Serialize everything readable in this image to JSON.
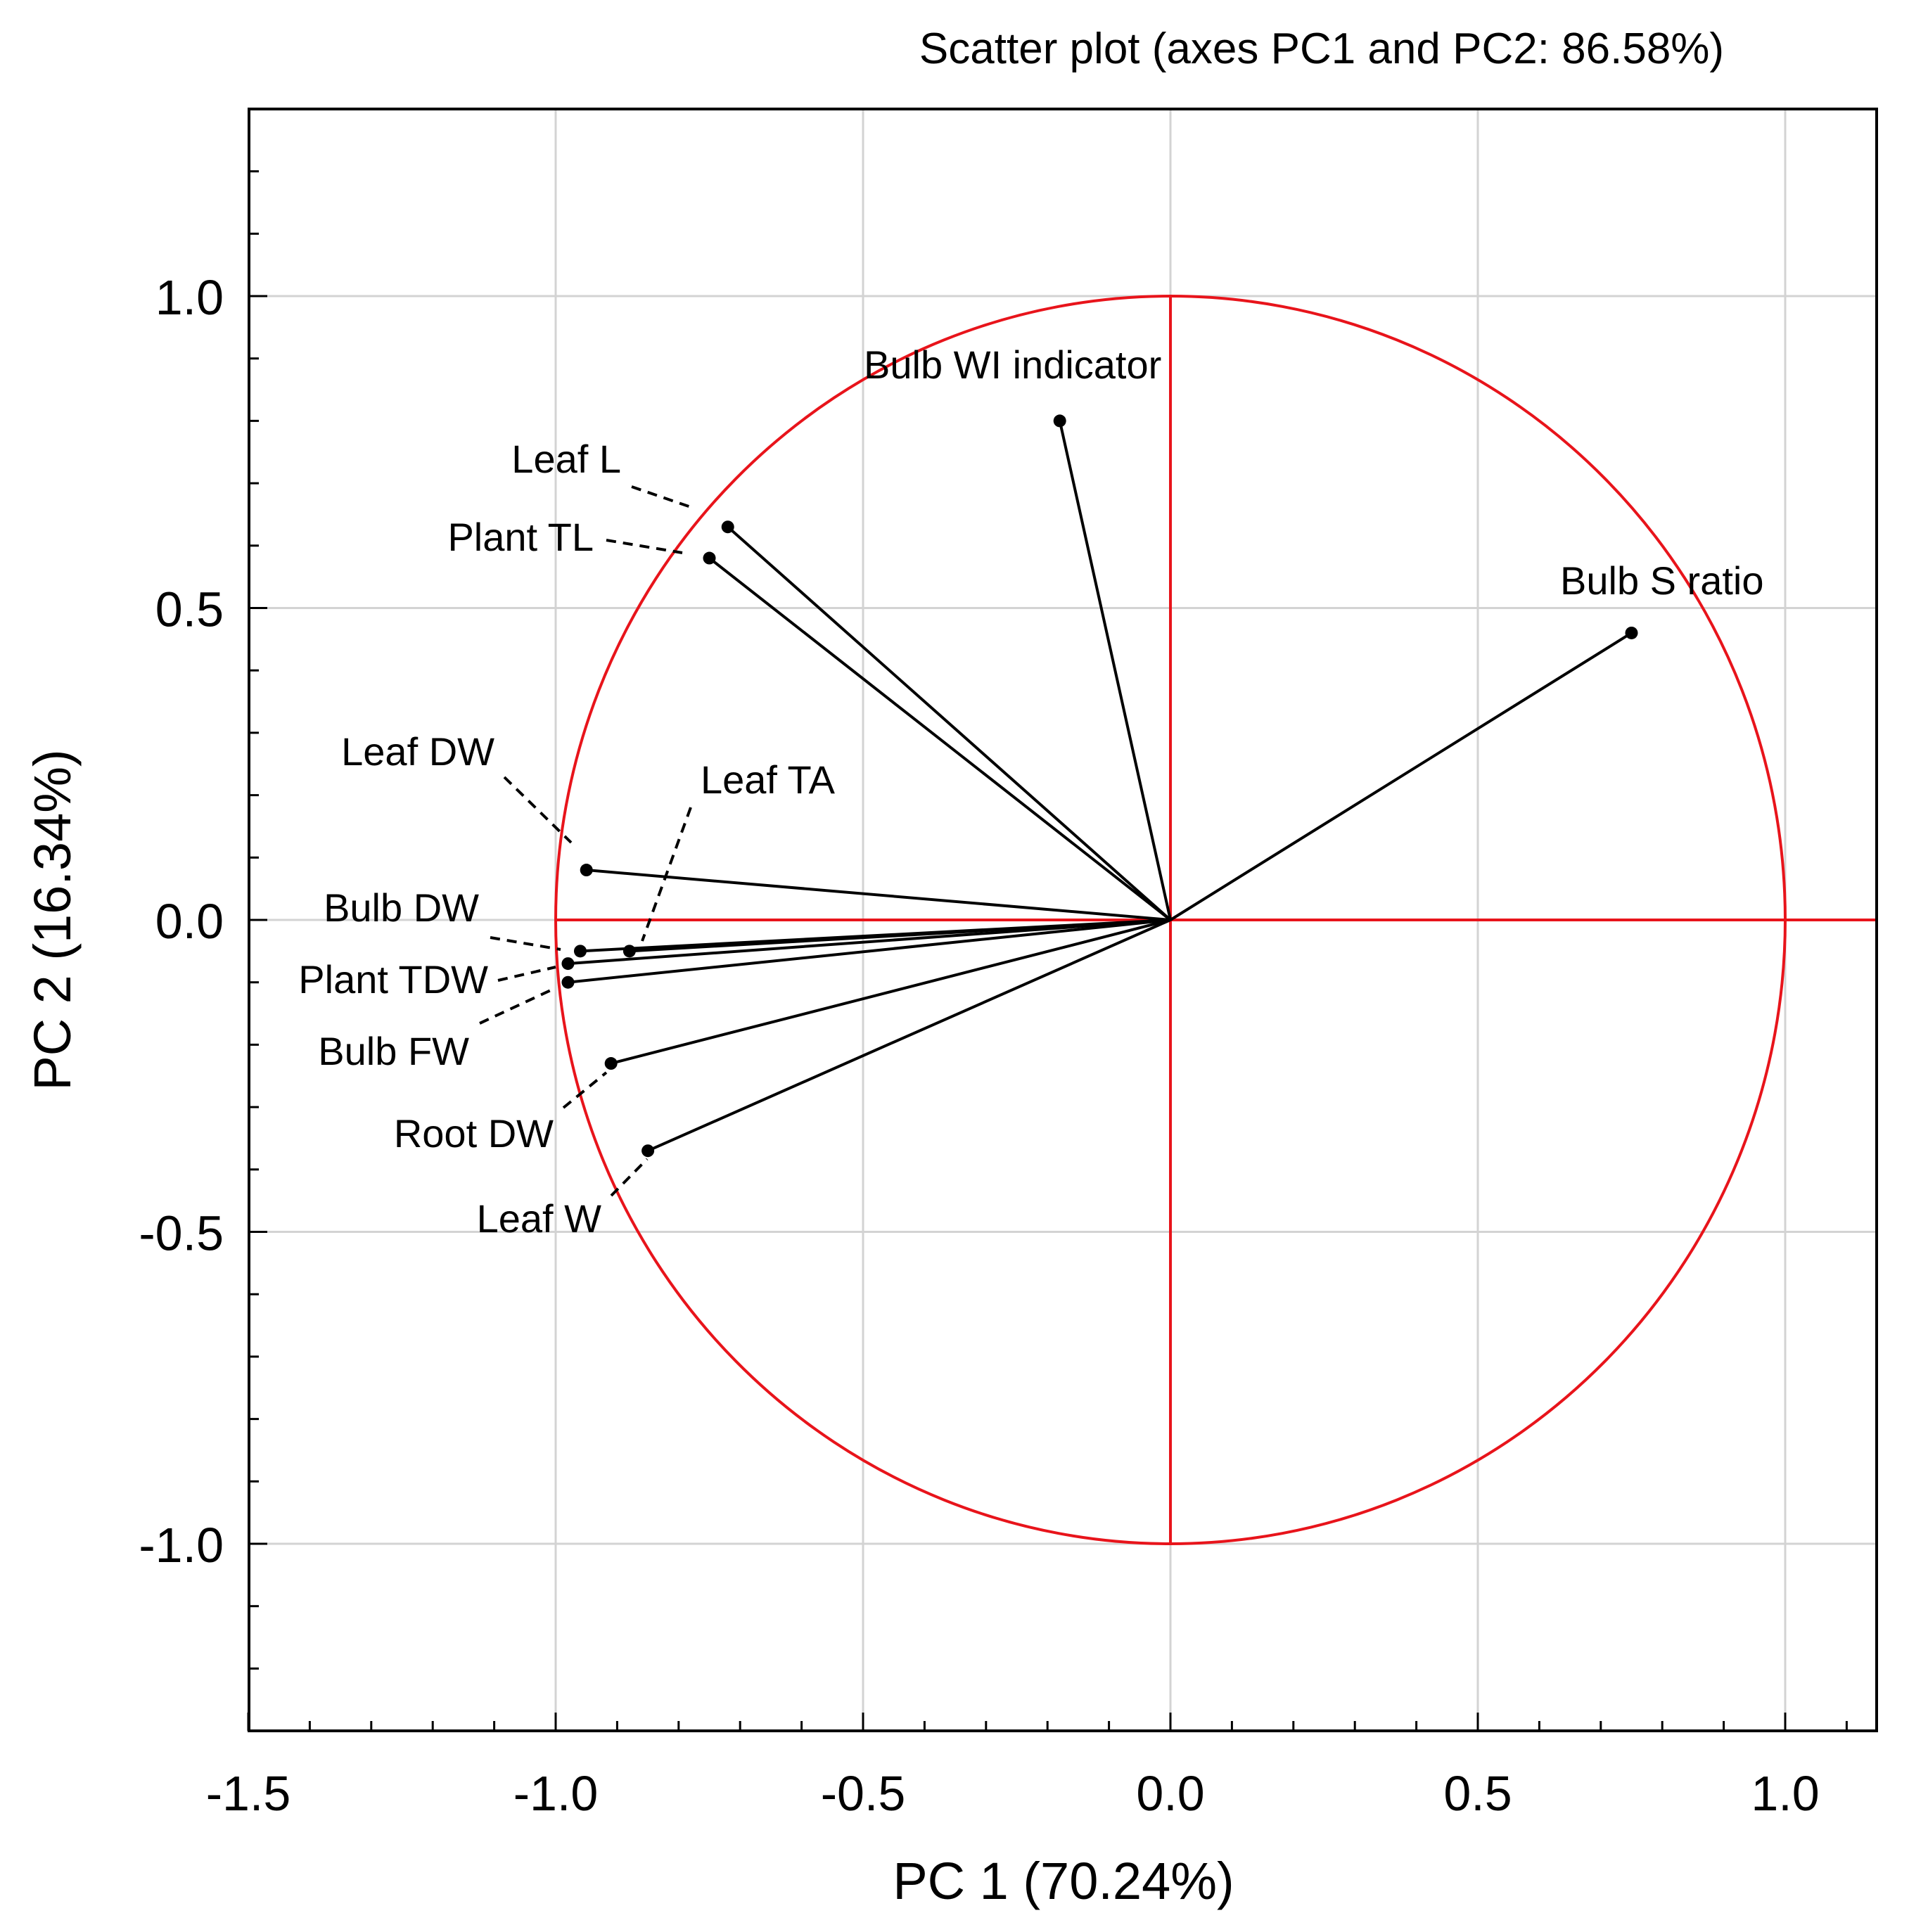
{
  "chart_data": {
    "type": "scatter",
    "title": "Scatter plot (axes PC1 and PC2: 86.58%)",
    "xlabel": "PC 1 (70.24%)",
    "ylabel": "PC 2 (16.34%)",
    "xlim": [
      -1.5,
      1.15
    ],
    "ylim": [
      -1.3,
      1.3
    ],
    "x_ticks": [
      -1.5,
      -1.0,
      -0.5,
      0.0,
      0.5,
      1.0
    ],
    "x_tick_labels": [
      "-1.5",
      "-1.0",
      "-0.5",
      "0.0",
      "0.5",
      "1.0"
    ],
    "y_ticks": [
      -1.0,
      -0.5,
      0.0,
      0.5,
      1.0
    ],
    "y_tick_labels": [
      "-1.0",
      "-0.5",
      "0.0",
      "0.5",
      "1.0"
    ],
    "grid": true,
    "unit_circle": {
      "radius": 1.0,
      "color": "#e8141b"
    },
    "points": [
      {
        "name": "Bulb WI indicator",
        "x": -0.18,
        "y": 0.8
      },
      {
        "name": "Bulb S ratio",
        "x": 0.75,
        "y": 0.46
      },
      {
        "name": "Leaf L",
        "x": -0.72,
        "y": 0.63
      },
      {
        "name": "Plant TL",
        "x": -0.75,
        "y": 0.58
      },
      {
        "name": "Leaf DW",
        "x": -0.95,
        "y": 0.08
      },
      {
        "name": "Leaf TA",
        "x": -0.88,
        "y": -0.05
      },
      {
        "name": "Bulb DW",
        "x": -0.96,
        "y": -0.05
      },
      {
        "name": "Plant TDW",
        "x": -0.98,
        "y": -0.07
      },
      {
        "name": "Bulb FW",
        "x": -0.98,
        "y": -0.1
      },
      {
        "name": "Root DW",
        "x": -0.91,
        "y": -0.23
      },
      {
        "name": "Leaf W",
        "x": -0.85,
        "y": -0.37
      }
    ]
  }
}
